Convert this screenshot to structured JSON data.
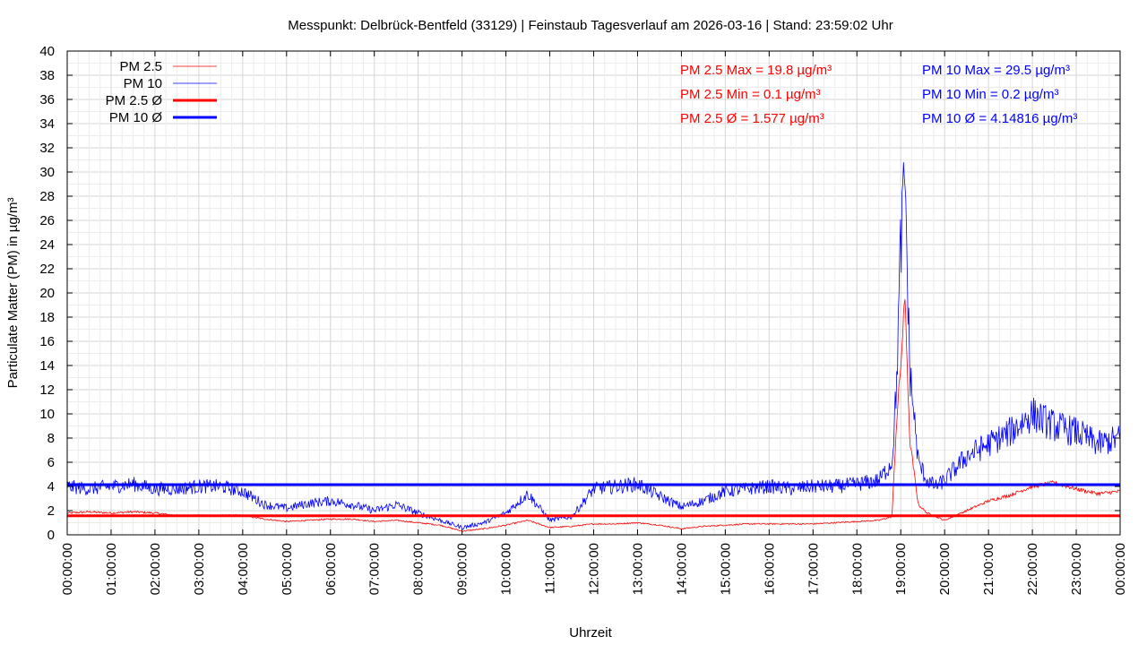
{
  "chart_data": {
    "type": "line",
    "title": "Messpunkt: Delbrück-Bentfeld (33129) | Feinstaub Tagesverlauf am 2026-03-16 | Stand: 23:59:02 Uhr",
    "xlabel": "Uhrzeit",
    "ylabel": "Particulate Matter (PM) in µg/m³",
    "ylim": [
      0,
      40
    ],
    "xlim": [
      0,
      24
    ],
    "grid": true,
    "legend_position": "top-left",
    "yticks": [
      0,
      2,
      4,
      6,
      8,
      10,
      12,
      14,
      16,
      18,
      20,
      22,
      24,
      26,
      28,
      30,
      32,
      34,
      36,
      38,
      40
    ],
    "xticks": [
      "00:00:00",
      "01:00:00",
      "02:00:00",
      "03:00:00",
      "04:00:00",
      "05:00:00",
      "06:00:00",
      "07:00:00",
      "08:00:00",
      "09:00:00",
      "10:00:00",
      "11:00:00",
      "12:00:00",
      "13:00:00",
      "14:00:00",
      "15:00:00",
      "16:00:00",
      "17:00:00",
      "18:00:00",
      "19:00:00",
      "20:00:00",
      "21:00:00",
      "22:00:00",
      "23:00:00",
      "00:00:00"
    ],
    "legend": [
      {
        "name": "PM 2.5",
        "color": "#ff0000",
        "style": "thin"
      },
      {
        "name": "PM 10",
        "color": "#0000ff",
        "style": "thin"
      },
      {
        "name": "PM 2.5 Ø",
        "color": "#ff0000",
        "style": "thick"
      },
      {
        "name": "PM 10 Ø",
        "color": "#0000ff",
        "style": "thick"
      }
    ],
    "annotations_pm25": [
      "PM 2.5 Max = 19.8 µg/m³",
      "PM 2.5 Min = 0.1 µg/m³",
      "PM 2.5 Ø = 1.577 µg/m³"
    ],
    "annotations_pm10": [
      "PM 10 Max = 29.5 µg/m³",
      "PM 10 Min = 0.2 µg/m³",
      "PM 10 Ø = 4.14816 µg/m³"
    ],
    "series": [
      {
        "name": "PM 2.5",
        "color": "#ff0000",
        "x": [
          0,
          0.5,
          1,
          1.5,
          2,
          2.5,
          3,
          3.5,
          4,
          4.5,
          5,
          5.5,
          6,
          6.5,
          7,
          7.5,
          8,
          8.5,
          9,
          9.5,
          10,
          10.5,
          11,
          11.5,
          12,
          12.5,
          13,
          13.5,
          14,
          14.5,
          15,
          15.5,
          16,
          16.5,
          17,
          17.5,
          18,
          18.5,
          18.8,
          18.9,
          19.0,
          19.1,
          19.2,
          19.4,
          19.6,
          19.8,
          20,
          20.5,
          21,
          21.5,
          22,
          22.5,
          23,
          23.5,
          24
        ],
        "y": [
          1.8,
          1.9,
          1.8,
          1.9,
          1.8,
          1.6,
          1.6,
          1.6,
          1.6,
          1.3,
          1.1,
          1.2,
          1.3,
          1.3,
          1.1,
          1.2,
          1.0,
          0.8,
          0.3,
          0.5,
          0.8,
          1.2,
          0.6,
          0.7,
          0.9,
          0.9,
          1.0,
          0.8,
          0.5,
          0.7,
          0.8,
          0.9,
          0.9,
          0.9,
          0.9,
          1.0,
          1.1,
          1.2,
          1.5,
          9.0,
          14.0,
          19.8,
          8.0,
          2.5,
          1.8,
          1.5,
          1.2,
          2.0,
          2.8,
          3.3,
          4.0,
          4.3,
          3.8,
          3.4,
          3.6
        ]
      },
      {
        "name": "PM 10",
        "color": "#0000ff",
        "x": [
          0,
          0.5,
          1,
          1.5,
          2,
          2.5,
          3,
          3.5,
          4,
          4.5,
          5,
          5.5,
          6,
          6.5,
          7,
          7.5,
          8,
          8.5,
          9,
          9.5,
          10,
          10.5,
          11,
          11.5,
          12,
          12.5,
          13,
          13.5,
          14,
          14.5,
          15,
          15.5,
          16,
          16.5,
          17,
          17.5,
          18,
          18.5,
          18.8,
          18.9,
          19.0,
          19.1,
          19.2,
          19.4,
          19.6,
          19.8,
          20,
          20.5,
          21,
          21.5,
          22,
          22.5,
          23,
          23.5,
          24
        ],
        "y": [
          4.0,
          3.8,
          4.0,
          4.2,
          3.8,
          3.8,
          4.0,
          4.0,
          3.6,
          2.5,
          2.2,
          2.6,
          2.8,
          2.5,
          2.0,
          2.5,
          1.8,
          1.2,
          0.6,
          1.0,
          1.8,
          3.4,
          1.2,
          1.5,
          3.8,
          4.0,
          4.2,
          3.2,
          2.3,
          2.8,
          3.6,
          3.8,
          4.0,
          3.8,
          4.0,
          4.0,
          4.2,
          4.5,
          6.0,
          12.0,
          24.0,
          29.5,
          14.0,
          6.0,
          4.5,
          4.0,
          4.5,
          6.5,
          7.5,
          8.5,
          10.0,
          9.0,
          8.5,
          7.5,
          8.0
        ]
      },
      {
        "name": "PM 2.5 Ø",
        "color": "#ff0000",
        "constant": 1.577
      },
      {
        "name": "PM 10 Ø",
        "color": "#0000ff",
        "constant": 4.14816
      }
    ]
  }
}
